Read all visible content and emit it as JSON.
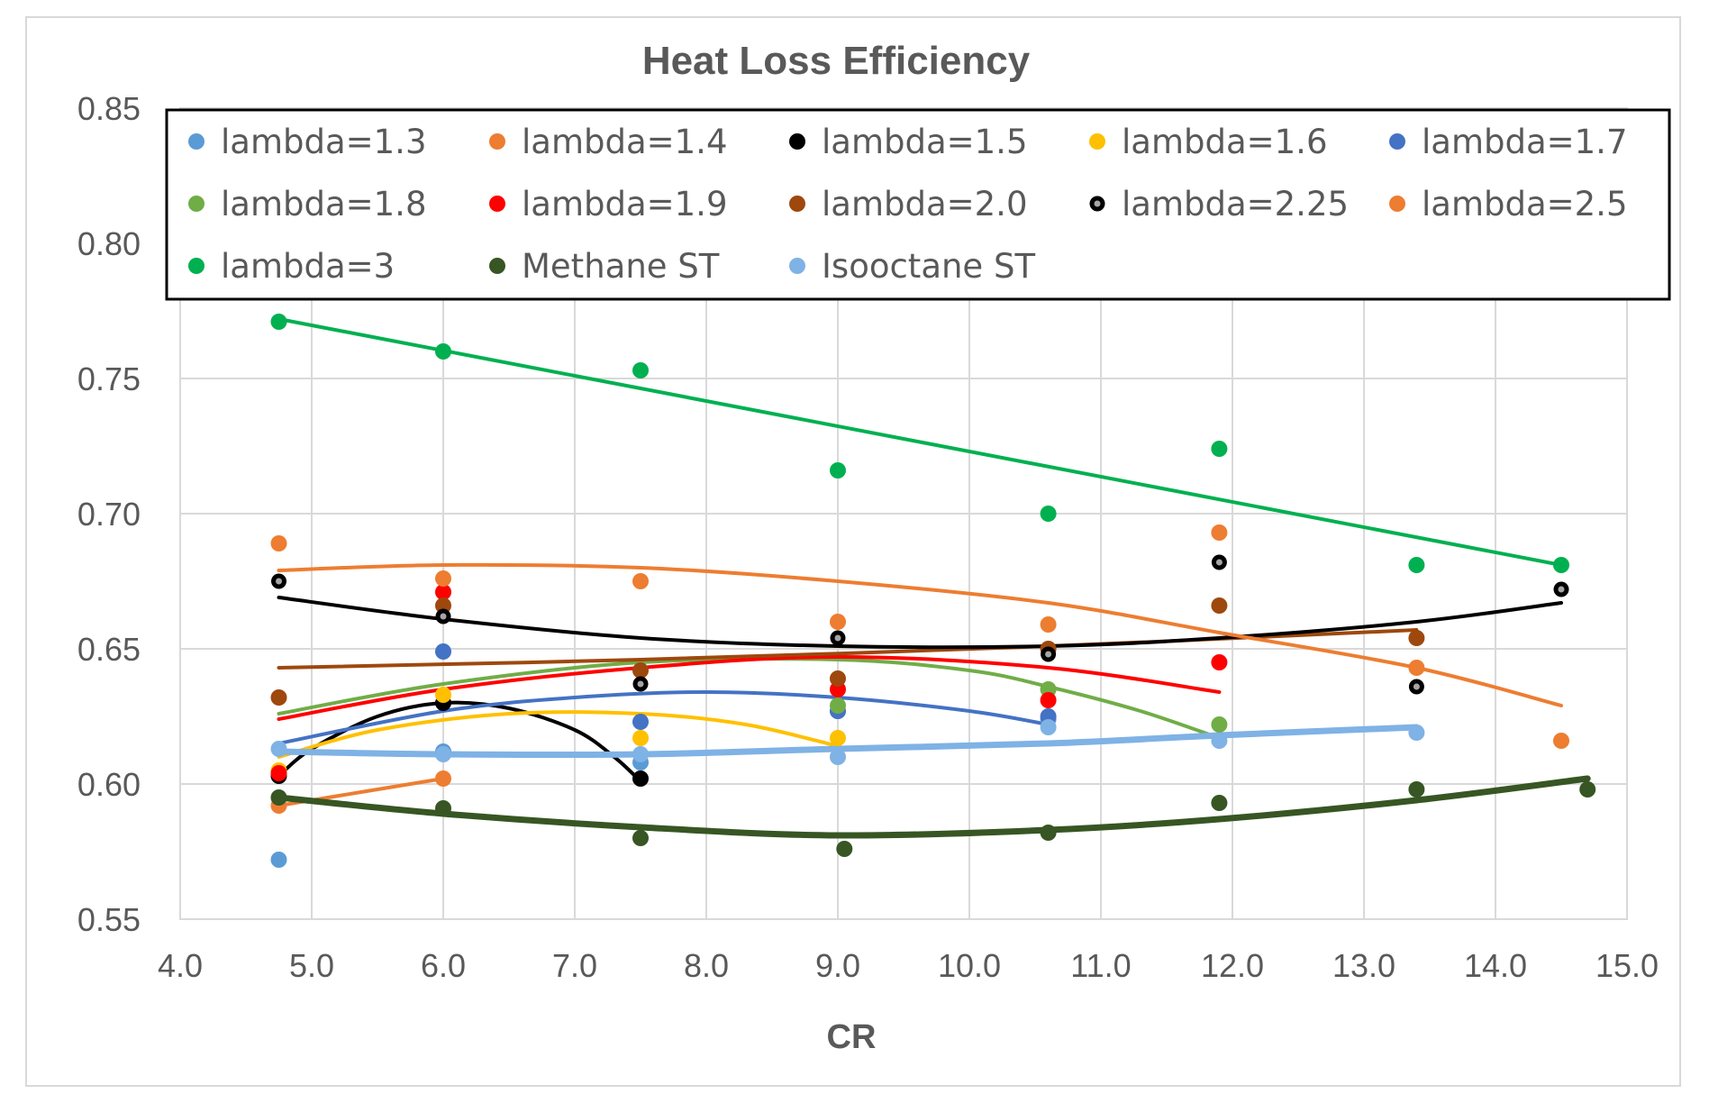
{
  "chart_data": {
    "type": "scatter",
    "title": "Heat Loss Efficiency",
    "xlabel": "CR",
    "ylabel": "",
    "xlim": [
      4.0,
      15.0
    ],
    "ylim": [
      0.55,
      0.85
    ],
    "x_ticks": [
      "4.0",
      "5.0",
      "6.0",
      "7.0",
      "8.0",
      "9.0",
      "10.0",
      "11.0",
      "12.0",
      "13.0",
      "14.0",
      "15.0"
    ],
    "y_ticks": [
      "0.55",
      "0.60",
      "0.65",
      "0.70",
      "0.75",
      "0.80",
      "0.85"
    ],
    "grid": true,
    "legend_position": "top",
    "series": [
      {
        "name": "lambda=1.3",
        "color": "#5b9bd5",
        "marker": "circle",
        "points": [
          [
            4.75,
            0.572
          ],
          [
            6.0,
            0.612
          ],
          [
            7.5,
            0.608
          ],
          [
            9.0,
            0.627
          ],
          [
            10.6,
            0.624
          ]
        ],
        "trend": []
      },
      {
        "name": "lambda=1.4",
        "color": "#ed7d31",
        "marker": "circle",
        "points": [
          [
            4.75,
            0.592
          ],
          [
            6.0,
            0.602
          ]
        ],
        "trend": [
          [
            4.75,
            0.592
          ],
          [
            6.0,
            0.602
          ]
        ]
      },
      {
        "name": "lambda=1.5",
        "color": "#000000",
        "marker": "circle",
        "points": [
          [
            4.75,
            0.603
          ],
          [
            6.0,
            0.63
          ],
          [
            7.5,
            0.602
          ]
        ],
        "trend": [
          [
            4.75,
            0.603
          ],
          [
            5.0,
            0.613
          ],
          [
            5.5,
            0.625
          ],
          [
            6.0,
            0.63
          ],
          [
            6.5,
            0.628
          ],
          [
            7.0,
            0.62
          ],
          [
            7.3,
            0.61
          ],
          [
            7.5,
            0.601
          ]
        ]
      },
      {
        "name": "lambda=1.6",
        "color": "#ffc000",
        "marker": "circle",
        "points": [
          [
            4.75,
            0.605
          ],
          [
            6.0,
            0.633
          ],
          [
            7.5,
            0.617
          ],
          [
            9.0,
            0.617
          ]
        ],
        "trend": [
          [
            4.75,
            0.61
          ],
          [
            5.5,
            0.62
          ],
          [
            6.5,
            0.626
          ],
          [
            7.5,
            0.626
          ],
          [
            8.3,
            0.622
          ],
          [
            9.0,
            0.614
          ]
        ]
      },
      {
        "name": "lambda=1.7",
        "color": "#4472c4",
        "marker": "circle",
        "points": [
          [
            6.0,
            0.649
          ],
          [
            7.5,
            0.623
          ],
          [
            9.0,
            0.627
          ],
          [
            10.6,
            0.625
          ]
        ],
        "trend": [
          [
            4.75,
            0.615
          ],
          [
            6.0,
            0.627
          ],
          [
            7.0,
            0.632
          ],
          [
            8.0,
            0.634
          ],
          [
            9.0,
            0.632
          ],
          [
            10.0,
            0.627
          ],
          [
            10.6,
            0.622
          ]
        ]
      },
      {
        "name": "lambda=1.8",
        "color": "#70ad47",
        "marker": "circle",
        "points": [
          [
            9.0,
            0.629
          ],
          [
            10.6,
            0.635
          ],
          [
            11.9,
            0.622
          ]
        ],
        "trend": [
          [
            4.75,
            0.626
          ],
          [
            6.0,
            0.637
          ],
          [
            7.5,
            0.645
          ],
          [
            9.0,
            0.646
          ],
          [
            10.0,
            0.642
          ],
          [
            10.6,
            0.636
          ],
          [
            11.3,
            0.627
          ],
          [
            11.9,
            0.617
          ]
        ]
      },
      {
        "name": "lambda=1.9",
        "color": "#ff0000",
        "marker": "circle",
        "points": [
          [
            4.75,
            0.604
          ],
          [
            6.0,
            0.671
          ],
          [
            9.0,
            0.635
          ],
          [
            10.6,
            0.631
          ],
          [
            11.9,
            0.645
          ]
        ],
        "trend": [
          [
            4.75,
            0.624
          ],
          [
            6.0,
            0.635
          ],
          [
            7.5,
            0.643
          ],
          [
            9.0,
            0.647
          ],
          [
            10.6,
            0.643
          ],
          [
            11.9,
            0.634
          ]
        ]
      },
      {
        "name": "lambda=2.0",
        "color": "#9e480e",
        "marker": "circle",
        "points": [
          [
            4.75,
            0.632
          ],
          [
            6.0,
            0.666
          ],
          [
            7.5,
            0.642
          ],
          [
            9.0,
            0.639
          ],
          [
            10.6,
            0.65
          ],
          [
            11.9,
            0.666
          ],
          [
            13.4,
            0.654
          ]
        ],
        "trend": [
          [
            4.75,
            0.643
          ],
          [
            7.5,
            0.646
          ],
          [
            10.6,
            0.651
          ],
          [
            13.4,
            0.657
          ]
        ]
      },
      {
        "name": "lambda=2.25",
        "color": "#000000",
        "marker": "ring",
        "points": [
          [
            4.75,
            0.675
          ],
          [
            6.0,
            0.662
          ],
          [
            7.5,
            0.637
          ],
          [
            9.0,
            0.654
          ],
          [
            10.6,
            0.648
          ],
          [
            11.9,
            0.682
          ],
          [
            13.4,
            0.636
          ],
          [
            14.5,
            0.672
          ]
        ],
        "trend": [
          [
            4.75,
            0.669
          ],
          [
            6.0,
            0.661
          ],
          [
            7.5,
            0.654
          ],
          [
            9.0,
            0.651
          ],
          [
            10.6,
            0.651
          ],
          [
            11.9,
            0.654
          ],
          [
            13.4,
            0.66
          ],
          [
            14.5,
            0.667
          ]
        ]
      },
      {
        "name": "lambda=2.5",
        "color": "#ed7d31",
        "marker": "circle",
        "points": [
          [
            4.75,
            0.689
          ],
          [
            6.0,
            0.676
          ],
          [
            7.5,
            0.675
          ],
          [
            9.0,
            0.66
          ],
          [
            10.6,
            0.659
          ],
          [
            11.9,
            0.693
          ],
          [
            13.4,
            0.643
          ],
          [
            14.5,
            0.616
          ]
        ],
        "trend": [
          [
            4.75,
            0.679
          ],
          [
            6.0,
            0.681
          ],
          [
            7.5,
            0.68
          ],
          [
            9.0,
            0.675
          ],
          [
            10.6,
            0.667
          ],
          [
            11.9,
            0.656
          ],
          [
            13.4,
            0.643
          ],
          [
            14.5,
            0.629
          ]
        ]
      },
      {
        "name": "lambda=3",
        "color": "#00b050",
        "marker": "circle",
        "points": [
          [
            4.75,
            0.771
          ],
          [
            6.0,
            0.76
          ],
          [
            7.5,
            0.753
          ],
          [
            9.0,
            0.716
          ],
          [
            10.6,
            0.7
          ],
          [
            11.9,
            0.724
          ],
          [
            13.4,
            0.681
          ],
          [
            14.5,
            0.681
          ]
        ],
        "trend": [
          [
            4.75,
            0.772
          ],
          [
            14.5,
            0.681
          ]
        ]
      },
      {
        "name": "Methane ST",
        "color": "#375623",
        "marker": "circle",
        "points": [
          [
            4.75,
            0.595
          ],
          [
            6.0,
            0.591
          ],
          [
            7.5,
            0.58
          ],
          [
            9.05,
            0.576
          ],
          [
            10.6,
            0.582
          ],
          [
            11.9,
            0.593
          ],
          [
            13.4,
            0.598
          ],
          [
            14.7,
            0.598
          ]
        ],
        "trend": [
          [
            4.75,
            0.595
          ],
          [
            6.0,
            0.589
          ],
          [
            7.5,
            0.584
          ],
          [
            9.0,
            0.581
          ],
          [
            10.6,
            0.583
          ],
          [
            11.9,
            0.587
          ],
          [
            13.4,
            0.594
          ],
          [
            14.7,
            0.602
          ]
        ]
      },
      {
        "name": "Isooctane ST",
        "color": "#7fb2e5",
        "marker": "circle",
        "points": [
          [
            4.75,
            0.613
          ],
          [
            6.0,
            0.611
          ],
          [
            7.5,
            0.611
          ],
          [
            9.0,
            0.61
          ],
          [
            10.6,
            0.621
          ],
          [
            11.9,
            0.616
          ],
          [
            13.4,
            0.619
          ]
        ],
        "trend": [
          [
            4.75,
            0.612
          ],
          [
            6.0,
            0.611
          ],
          [
            7.5,
            0.611
          ],
          [
            9.0,
            0.613
          ],
          [
            10.6,
            0.615
          ],
          [
            11.9,
            0.618
          ],
          [
            13.4,
            0.621
          ]
        ]
      }
    ]
  }
}
